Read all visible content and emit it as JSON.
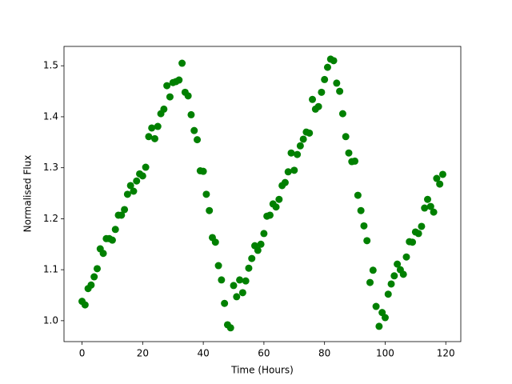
{
  "chart_data": {
    "type": "scatter",
    "xlabel": "Time (Hours)",
    "ylabel": "Normalised Flux",
    "color": "#008000",
    "xlim": [
      -5.95,
      124.95
    ],
    "xticks": [
      0,
      20,
      40,
      60,
      80,
      100,
      120
    ],
    "ylim": [
      0.959,
      1.538
    ],
    "yticks": [
      {
        "value": 1,
        "label": "1.0"
      },
      1.1,
      1.2,
      1.3,
      1.4,
      1.5
    ],
    "x": [
      0,
      1,
      2,
      3,
      4,
      5,
      6,
      7,
      8,
      9,
      10,
      11,
      12,
      13,
      14,
      15,
      16,
      17,
      18,
      19,
      20,
      21,
      22,
      23,
      24,
      25,
      26,
      27,
      28,
      29,
      30,
      31,
      32,
      33,
      34,
      35,
      36,
      37,
      38,
      39,
      40,
      41,
      42,
      43,
      44,
      45,
      46,
      47,
      48,
      49,
      50,
      51,
      52,
      53,
      54,
      55,
      56,
      57,
      58,
      59,
      60,
      61,
      62,
      63,
      64,
      65,
      66,
      67,
      68,
      69,
      70,
      71,
      72,
      73,
      74,
      75,
      76,
      77,
      78,
      79,
      80,
      81,
      82,
      83,
      84,
      85,
      86,
      87,
      88,
      89,
      90,
      91,
      92,
      93,
      94,
      95,
      96,
      97,
      98,
      99,
      100,
      101,
      102,
      103,
      104,
      105,
      106,
      107,
      108,
      109,
      110,
      111,
      112,
      113,
      114,
      115,
      116,
      117,
      118,
      119
    ],
    "values": [
      1.038,
      1.031,
      1.063,
      1.07,
      1.086,
      1.102,
      1.141,
      1.132,
      1.161,
      1.161,
      1.158,
      1.179,
      1.207,
      1.207,
      1.218,
      1.248,
      1.265,
      1.254,
      1.274,
      1.288,
      1.284,
      1.301,
      1.361,
      1.378,
      1.357,
      1.381,
      1.406,
      1.415,
      1.461,
      1.439,
      1.467,
      1.469,
      1.472,
      1.505,
      1.448,
      1.441,
      1.404,
      1.373,
      1.355,
      1.294,
      1.293,
      1.248,
      1.216,
      1.163,
      1.154,
      1.108,
      1.08,
      1.034,
      0.992,
      0.986,
      1.069,
      1.047,
      1.08,
      1.055,
      1.078,
      1.103,
      1.122,
      1.147,
      1.138,
      1.15,
      1.171,
      1.205,
      1.207,
      1.229,
      1.223,
      1.238,
      1.265,
      1.271,
      1.292,
      1.329,
      1.295,
      1.326,
      1.343,
      1.356,
      1.37,
      1.368,
      1.434,
      1.415,
      1.42,
      1.448,
      1.473,
      1.497,
      1.513,
      1.51,
      1.466,
      1.45,
      1.406,
      1.361,
      1.329,
      1.312,
      1.313,
      1.246,
      1.216,
      1.186,
      1.157,
      1.075,
      1.099,
      1.028,
      0.989,
      1.016,
      1.006,
      1.052,
      1.072,
      1.088,
      1.111,
      1.1,
      1.091,
      1.125,
      1.155,
      1.154,
      1.174,
      1.171,
      1.185,
      1.221,
      1.238,
      1.224,
      1.213,
      1.279,
      1.268,
      1.287
    ]
  }
}
